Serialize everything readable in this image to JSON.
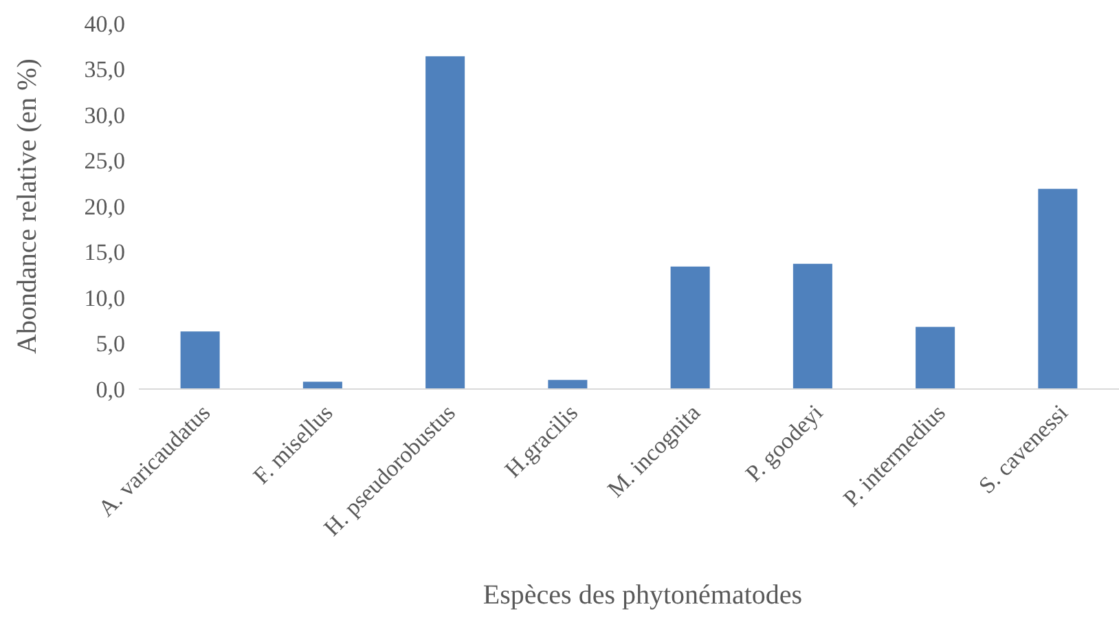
{
  "chart_data": {
    "type": "bar",
    "xlabel": "Espèces des phytonématodes",
    "ylabel": "Abondance relative  (en %)",
    "categories": [
      "A. varicaudatus",
      "F. misellus",
      "H. pseudorobustus",
      "H.gracilis",
      "M. incognita",
      "P. goodeyi",
      "P. intermedius",
      "S. cavenessi"
    ],
    "values": [
      6.3,
      0.8,
      36.4,
      1.0,
      13.4,
      13.7,
      6.8,
      21.9
    ],
    "color": "#4f81bd",
    "ylim": [
      0,
      40
    ],
    "yticks": [
      {
        "value": 0,
        "label": "0,0"
      },
      {
        "value": 5,
        "label": "5,0"
      },
      {
        "value": 10,
        "label": "10,0"
      },
      {
        "value": 15,
        "label": "15,0"
      },
      {
        "value": 20,
        "label": "20,0"
      },
      {
        "value": 25,
        "label": "25,0"
      },
      {
        "value": 30,
        "label": "30,0"
      },
      {
        "value": 35,
        "label": "35,0"
      },
      {
        "value": 40,
        "label": "40,0"
      }
    ],
    "grid": false
  }
}
